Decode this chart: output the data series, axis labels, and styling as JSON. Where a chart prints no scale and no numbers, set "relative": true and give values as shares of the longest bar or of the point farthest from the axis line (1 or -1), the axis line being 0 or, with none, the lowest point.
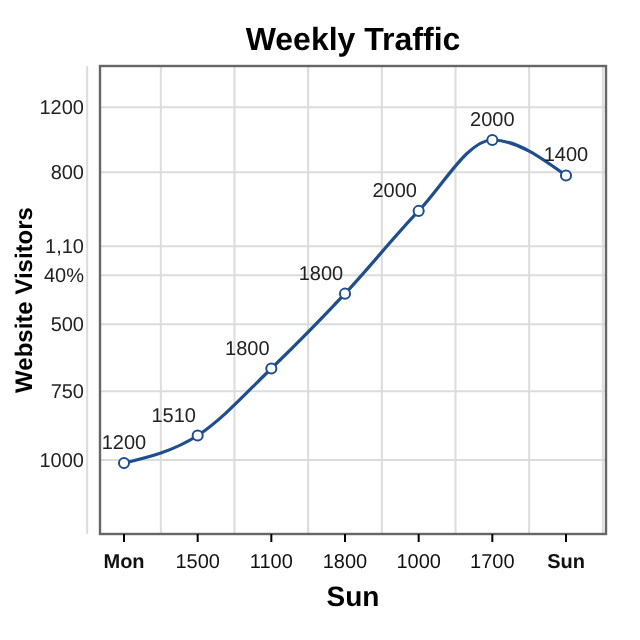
{
  "chart_data": {
    "type": "line",
    "title": "Weekly Traffic",
    "xlabel": "Sun",
    "ylabel": "Website Visitors",
    "categories": [
      "Mon",
      "1500",
      "1100",
      "1800",
      "1000",
      "1700",
      "Sun"
    ],
    "series": [
      {
        "color": "#1f4e8c",
        "values": [
          0.18,
          0.25,
          0.42,
          0.61,
          0.82,
          1,
          0.91
        ]
      }
    ],
    "value_labels": [
      "1200",
      "1510",
      "1800",
      "1800",
      "2000",
      "2000",
      "1400"
    ],
    "relative": true,
    "annotations": [
      "1200",
      "800",
      "1,10",
      "40%",
      "500",
      "750",
      "1000"
    ],
    "grid": true,
    "marker": "circle",
    "line_style": "solid"
  }
}
